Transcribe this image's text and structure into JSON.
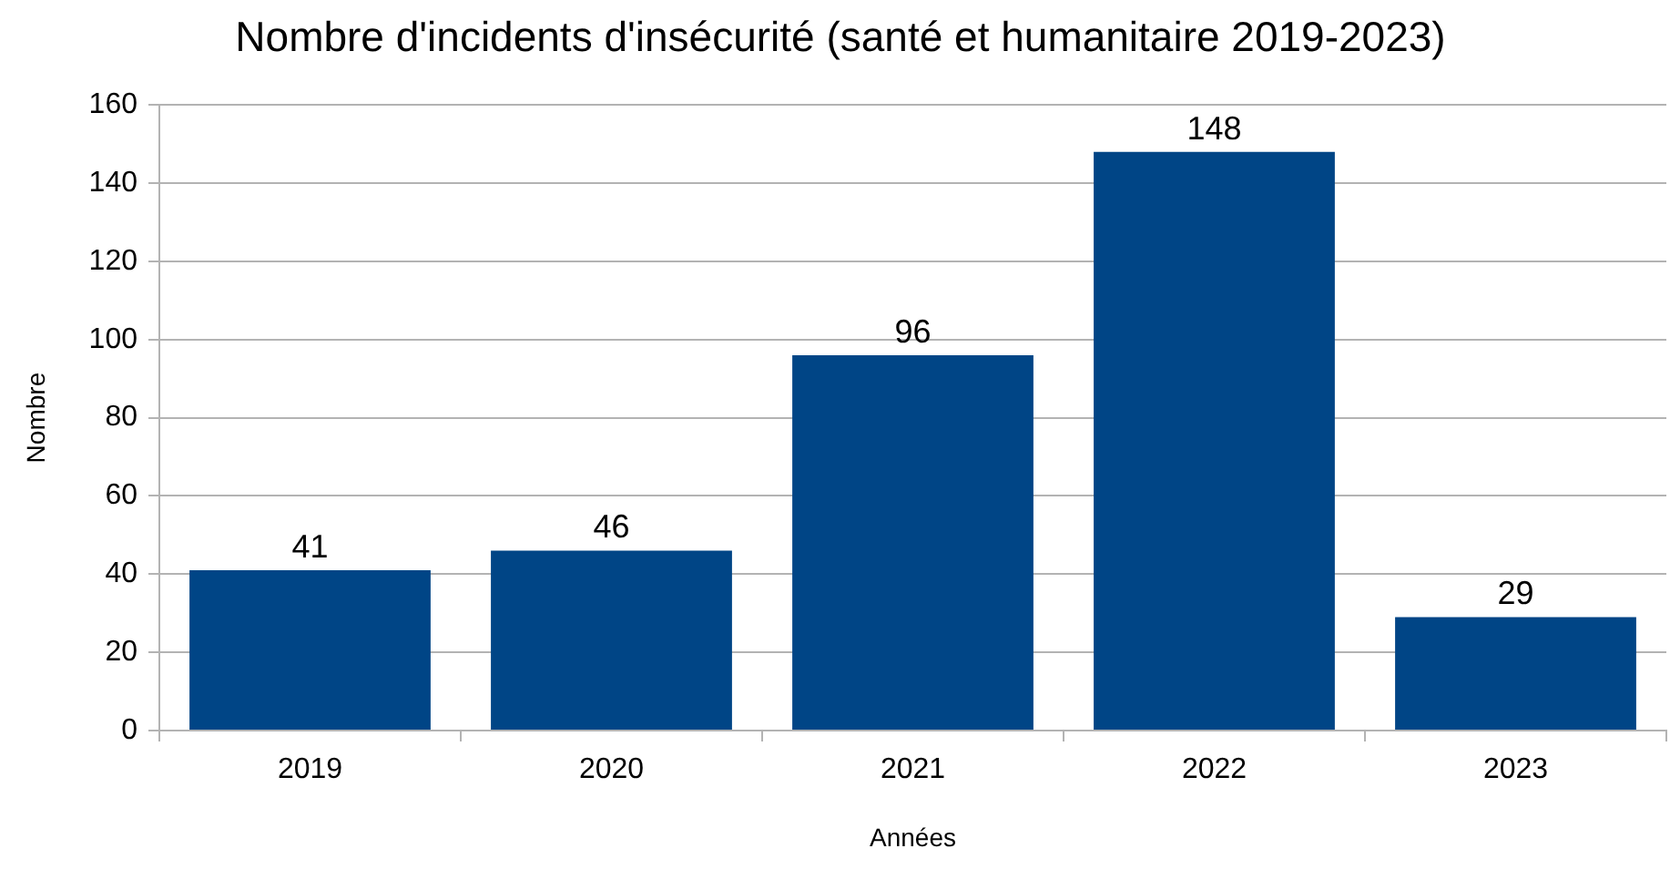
{
  "chart_data": {
    "type": "bar",
    "title": "Nombre d'incidents d'insécurité (santé et humanitaire 2019-2023)",
    "xlabel": "Années",
    "ylabel": "Nombre",
    "categories": [
      "2019",
      "2020",
      "2021",
      "2022",
      "2023"
    ],
    "values": [
      41,
      46,
      96,
      148,
      29
    ],
    "color": "#004586",
    "ylim": [
      0,
      160
    ],
    "yticks": [
      0,
      20,
      40,
      60,
      80,
      100,
      120,
      140,
      160
    ],
    "grid": "y",
    "legend": false,
    "data_labels": true
  }
}
